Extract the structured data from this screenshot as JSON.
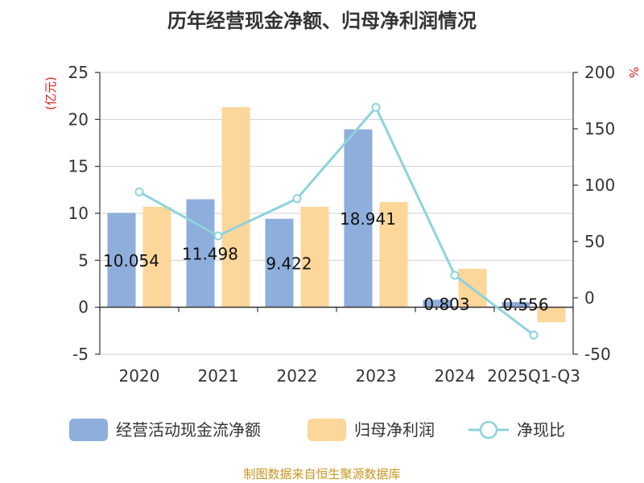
{
  "chart_data": {
    "type": "bar",
    "title": "历年经营现金净额、归母净利润情况",
    "categories": [
      "2020",
      "2021",
      "2022",
      "2023",
      "2024",
      "2025Q1-Q3"
    ],
    "series": [
      {
        "name": "经营活动现金流净额",
        "axis": "left",
        "kind": "bar",
        "color": "#8eaedb",
        "values": [
          10.054,
          11.498,
          9.422,
          18.941,
          0.803,
          0.556
        ],
        "labels": [
          "10.054",
          "11.498",
          "9.422",
          "18.941",
          "0.803",
          "0.556"
        ]
      },
      {
        "name": "归母净利润",
        "axis": "left",
        "kind": "bar",
        "color": "#fdd699",
        "values": [
          10.7,
          21.3,
          10.7,
          11.2,
          4.1,
          -1.6
        ]
      },
      {
        "name": "净现比",
        "axis": "right",
        "kind": "line",
        "color": "#8dd3dc",
        "values": [
          94,
          55,
          88,
          169,
          20,
          -33
        ]
      }
    ],
    "left_axis": {
      "unit": "(亿元)",
      "ylim": [
        -5,
        25
      ],
      "ticks": [
        "25",
        "20",
        "15",
        "10",
        "5",
        "0",
        "-5"
      ]
    },
    "right_axis": {
      "unit": "%",
      "ylim": [
        -50,
        200
      ],
      "ticks": [
        "200",
        "150",
        "100",
        "50",
        "0",
        "-50"
      ]
    },
    "grid": true,
    "legend_position": "bottom",
    "source": "制图数据来自恒生聚源数据库"
  }
}
